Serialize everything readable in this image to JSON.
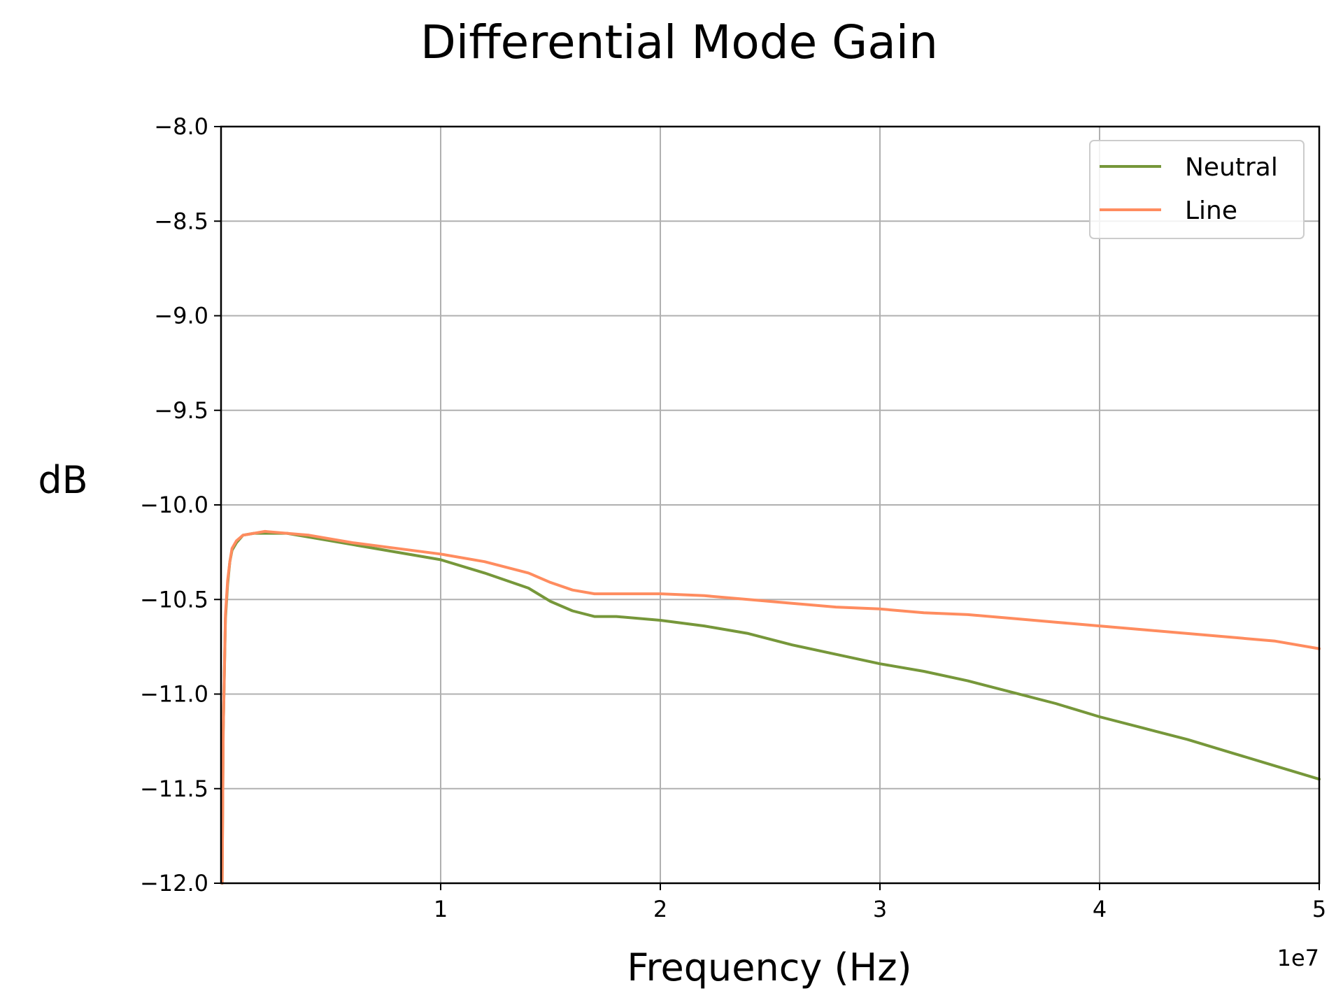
{
  "chart_data": {
    "type": "line",
    "title": "Differential Mode Gain",
    "xlabel": "Frequency (Hz)",
    "ylabel": "dB",
    "x_offset_text": "1e7",
    "xlim": [
      0,
      50000000
    ],
    "ylim": [
      -12.0,
      -8.0
    ],
    "x_ticks": [
      10000000,
      20000000,
      30000000,
      40000000,
      50000000
    ],
    "x_tick_labels": [
      "1",
      "2",
      "3",
      "4",
      "5"
    ],
    "y_ticks": [
      -8.0,
      -8.5,
      -9.0,
      -9.5,
      -10.0,
      -10.5,
      -11.0,
      -11.5,
      -12.0
    ],
    "y_tick_labels": [
      "−8.0",
      "−8.5",
      "−9.0",
      "−9.5",
      "−10.0",
      "−10.5",
      "−11.0",
      "−11.5",
      "−12.0"
    ],
    "grid": true,
    "legend_position": "top-right",
    "series": [
      {
        "name": "Neutral",
        "color": "#76973a",
        "x": [
          50000,
          100000,
          200000,
          300000,
          400000,
          500000,
          700000,
          1000000,
          1500000,
          2000000,
          3000000,
          4000000,
          6000000,
          8000000,
          10000000,
          12000000,
          14000000,
          15000000,
          16000000,
          17000000,
          18000000,
          20000000,
          22000000,
          24000000,
          26000000,
          28000000,
          30000000,
          32000000,
          34000000,
          36000000,
          38000000,
          40000000,
          42000000,
          44000000,
          46000000,
          48000000,
          50000000
        ],
        "y": [
          -12.0,
          -11.2,
          -10.6,
          -10.42,
          -10.3,
          -10.24,
          -10.2,
          -10.16,
          -10.15,
          -10.15,
          -10.15,
          -10.17,
          -10.21,
          -10.25,
          -10.29,
          -10.36,
          -10.44,
          -10.51,
          -10.56,
          -10.59,
          -10.59,
          -10.61,
          -10.64,
          -10.68,
          -10.74,
          -10.79,
          -10.84,
          -10.88,
          -10.93,
          -10.99,
          -11.05,
          -11.12,
          -11.18,
          -11.24,
          -11.31,
          -11.38,
          -11.45
        ]
      },
      {
        "name": "Line",
        "color": "#ff8c5f",
        "x": [
          50000,
          100000,
          200000,
          300000,
          400000,
          500000,
          700000,
          1000000,
          1500000,
          2000000,
          3000000,
          4000000,
          6000000,
          8000000,
          10000000,
          12000000,
          14000000,
          15000000,
          16000000,
          17000000,
          18000000,
          20000000,
          22000000,
          24000000,
          26000000,
          28000000,
          30000000,
          32000000,
          34000000,
          36000000,
          38000000,
          40000000,
          42000000,
          44000000,
          46000000,
          48000000,
          50000000
        ],
        "y": [
          -12.0,
          -11.2,
          -10.58,
          -10.4,
          -10.3,
          -10.23,
          -10.19,
          -10.16,
          -10.15,
          -10.14,
          -10.15,
          -10.16,
          -10.2,
          -10.23,
          -10.26,
          -10.3,
          -10.36,
          -10.41,
          -10.45,
          -10.47,
          -10.47,
          -10.47,
          -10.48,
          -10.5,
          -10.52,
          -10.54,
          -10.55,
          -10.57,
          -10.58,
          -10.6,
          -10.62,
          -10.64,
          -10.66,
          -10.68,
          -10.7,
          -10.72,
          -10.76
        ]
      }
    ]
  }
}
